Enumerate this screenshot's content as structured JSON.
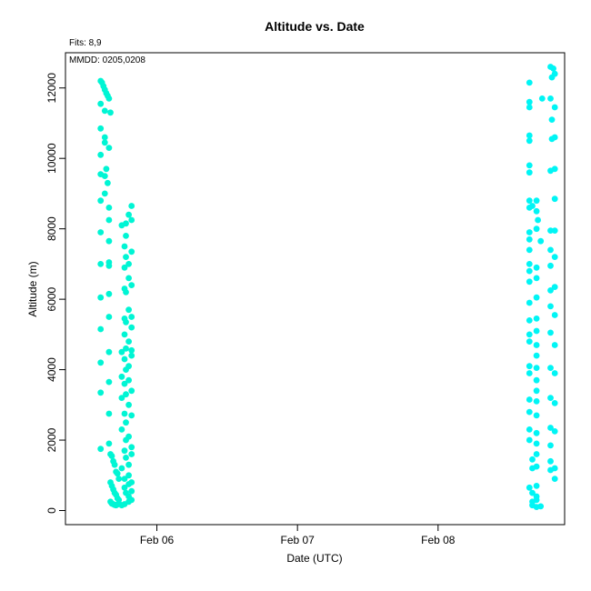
{
  "chart_data": {
    "type": "scatter",
    "title": "Altitude  vs. Date",
    "xlabel": "Date (UTC)",
    "ylabel": "Altitude (m)",
    "annotations": [
      "Fits: 8,9",
      "MMDD: 0205,0208"
    ],
    "xlim": [
      "2021-02-05T08:24",
      "2021-02-08T21:36"
    ],
    "ylim": [
      -400,
      13000
    ],
    "x_ticks": [
      {
        "value": "2021-02-06T00:00",
        "label": "Feb 06"
      },
      {
        "value": "2021-02-07T00:00",
        "label": "Feb 07"
      },
      {
        "value": "2021-02-08T00:00",
        "label": "Feb 08"
      }
    ],
    "y_ticks": [
      0,
      2000,
      4000,
      6000,
      8000,
      10000,
      12000
    ],
    "grid": false,
    "series": [
      {
        "color": "#00f5d4",
        "points": [
          [
            "2021-02-05T14:24",
            12200
          ],
          [
            "2021-02-05T14:38",
            12150
          ],
          [
            "2021-02-05T14:53",
            12050
          ],
          [
            "2021-02-05T15:07",
            11950
          ],
          [
            "2021-02-05T15:22",
            11850
          ],
          [
            "2021-02-05T15:36",
            11780
          ],
          [
            "2021-02-05T15:50",
            11700
          ],
          [
            "2021-02-05T16:05",
            11300
          ],
          [
            "2021-02-05T14:24",
            11550
          ],
          [
            "2021-02-05T15:07",
            11350
          ],
          [
            "2021-02-05T14:24",
            10850
          ],
          [
            "2021-02-05T15:07",
            10600
          ],
          [
            "2021-02-05T15:07",
            10450
          ],
          [
            "2021-02-05T15:50",
            10300
          ],
          [
            "2021-02-05T14:24",
            10100
          ],
          [
            "2021-02-05T15:22",
            9700
          ],
          [
            "2021-02-05T14:24",
            9550
          ],
          [
            "2021-02-05T15:07",
            9500
          ],
          [
            "2021-02-05T15:36",
            9300
          ],
          [
            "2021-02-05T15:07",
            9000
          ],
          [
            "2021-02-05T14:24",
            8800
          ],
          [
            "2021-02-05T15:50",
            8600
          ],
          [
            "2021-02-05T15:50",
            8250
          ],
          [
            "2021-02-05T14:24",
            7900
          ],
          [
            "2021-02-05T15:50",
            7650
          ],
          [
            "2021-02-05T15:50",
            7050
          ],
          [
            "2021-02-05T14:24",
            7000
          ],
          [
            "2021-02-05T15:50",
            6950
          ],
          [
            "2021-02-05T15:50",
            6150
          ],
          [
            "2021-02-05T14:24",
            6050
          ],
          [
            "2021-02-05T15:50",
            5500
          ],
          [
            "2021-02-05T14:24",
            5150
          ],
          [
            "2021-02-05T15:50",
            4500
          ],
          [
            "2021-02-05T14:24",
            4200
          ],
          [
            "2021-02-05T15:50",
            3650
          ],
          [
            "2021-02-05T14:24",
            3350
          ],
          [
            "2021-02-05T15:50",
            2750
          ],
          [
            "2021-02-05T14:24",
            1750
          ],
          [
            "2021-02-05T15:50",
            1900
          ],
          [
            "2021-02-05T16:05",
            1600
          ],
          [
            "2021-02-05T16:19",
            1550
          ],
          [
            "2021-02-05T16:34",
            1400
          ],
          [
            "2021-02-05T16:48",
            1300
          ],
          [
            "2021-02-05T17:02",
            1100
          ],
          [
            "2021-02-05T17:17",
            1050
          ],
          [
            "2021-02-05T17:31",
            900
          ],
          [
            "2021-02-05T16:05",
            800
          ],
          [
            "2021-02-05T16:19",
            700
          ],
          [
            "2021-02-05T16:34",
            600
          ],
          [
            "2021-02-05T16:48",
            500
          ],
          [
            "2021-02-05T17:02",
            450
          ],
          [
            "2021-02-05T17:17",
            350
          ],
          [
            "2021-02-05T17:31",
            300
          ],
          [
            "2021-02-05T16:05",
            250
          ],
          [
            "2021-02-05T16:19",
            200
          ],
          [
            "2021-02-05T16:34",
            180
          ],
          [
            "2021-02-05T16:48",
            160
          ],
          [
            "2021-02-05T17:02",
            150
          ],
          [
            "2021-02-05T17:17",
            170
          ],
          [
            "2021-02-05T17:31",
            200
          ],
          [
            "2021-02-05T18:00",
            150
          ],
          [
            "2021-02-05T18:29",
            180
          ],
          [
            "2021-02-05T19:12",
            250
          ],
          [
            "2021-02-05T19:41",
            300
          ],
          [
            "2021-02-05T19:12",
            400
          ],
          [
            "2021-02-05T18:43",
            500
          ],
          [
            "2021-02-05T19:41",
            550
          ],
          [
            "2021-02-05T18:29",
            650
          ],
          [
            "2021-02-05T19:12",
            750
          ],
          [
            "2021-02-05T19:41",
            800
          ],
          [
            "2021-02-05T18:29",
            900
          ],
          [
            "2021-02-05T19:12",
            1000
          ],
          [
            "2021-02-05T18:00",
            1200
          ],
          [
            "2021-02-05T19:12",
            1300
          ],
          [
            "2021-02-05T18:43",
            1500
          ],
          [
            "2021-02-05T19:41",
            1600
          ],
          [
            "2021-02-05T18:29",
            1700
          ],
          [
            "2021-02-05T19:41",
            1800
          ],
          [
            "2021-02-05T18:43",
            2000
          ],
          [
            "2021-02-05T19:12",
            2100
          ],
          [
            "2021-02-05T18:00",
            2300
          ],
          [
            "2021-02-05T18:43",
            2500
          ],
          [
            "2021-02-05T19:41",
            2700
          ],
          [
            "2021-02-05T18:29",
            2750
          ],
          [
            "2021-02-05T19:12",
            3000
          ],
          [
            "2021-02-05T18:00",
            3200
          ],
          [
            "2021-02-05T18:43",
            3300
          ],
          [
            "2021-02-05T19:41",
            3400
          ],
          [
            "2021-02-05T18:29",
            3600
          ],
          [
            "2021-02-05T19:12",
            3700
          ],
          [
            "2021-02-05T18:00",
            3800
          ],
          [
            "2021-02-05T18:43",
            4000
          ],
          [
            "2021-02-05T19:12",
            4100
          ],
          [
            "2021-02-05T18:29",
            4300
          ],
          [
            "2021-02-05T19:41",
            4400
          ],
          [
            "2021-02-05T18:00",
            4500
          ],
          [
            "2021-02-05T18:43",
            4600
          ],
          [
            "2021-02-05T19:41",
            4550
          ],
          [
            "2021-02-05T19:12",
            4800
          ],
          [
            "2021-02-05T18:29",
            5000
          ],
          [
            "2021-02-05T19:41",
            5200
          ],
          [
            "2021-02-05T18:43",
            5350
          ],
          [
            "2021-02-05T18:29",
            5450
          ],
          [
            "2021-02-05T19:41",
            5500
          ],
          [
            "2021-02-05T19:12",
            5700
          ],
          [
            "2021-02-05T18:43",
            6200
          ],
          [
            "2021-02-05T18:29",
            6300
          ],
          [
            "2021-02-05T19:41",
            6400
          ],
          [
            "2021-02-05T19:12",
            6600
          ],
          [
            "2021-02-05T18:29",
            6900
          ],
          [
            "2021-02-05T19:12",
            7000
          ],
          [
            "2021-02-05T18:43",
            7200
          ],
          [
            "2021-02-05T19:41",
            7350
          ],
          [
            "2021-02-05T18:29",
            7500
          ],
          [
            "2021-02-05T18:43",
            7800
          ],
          [
            "2021-02-05T18:00",
            8100
          ],
          [
            "2021-02-05T18:43",
            8150
          ],
          [
            "2021-02-05T19:41",
            8250
          ],
          [
            "2021-02-05T19:12",
            8400
          ],
          [
            "2021-02-05T19:41",
            8650
          ]
        ]
      },
      {
        "color": "#00f5f5",
        "points": [
          [
            "2021-02-08T19:12",
            12600
          ],
          [
            "2021-02-08T19:41",
            12550
          ],
          [
            "2021-02-08T19:26",
            12300
          ],
          [
            "2021-02-08T19:55",
            12400
          ],
          [
            "2021-02-08T15:36",
            12150
          ],
          [
            "2021-02-08T15:36",
            11600
          ],
          [
            "2021-02-08T15:36",
            11450
          ],
          [
            "2021-02-08T17:46",
            11700
          ],
          [
            "2021-02-08T19:12",
            11700
          ],
          [
            "2021-02-08T19:55",
            11450
          ],
          [
            "2021-02-08T19:26",
            11100
          ],
          [
            "2021-02-08T15:36",
            10650
          ],
          [
            "2021-02-08T15:36",
            10500
          ],
          [
            "2021-02-08T19:26",
            10550
          ],
          [
            "2021-02-08T19:55",
            10600
          ],
          [
            "2021-02-08T15:36",
            9800
          ],
          [
            "2021-02-08T15:36",
            9600
          ],
          [
            "2021-02-08T19:12",
            9650
          ],
          [
            "2021-02-08T19:55",
            9700
          ],
          [
            "2021-02-08T15:36",
            8800
          ],
          [
            "2021-02-08T16:48",
            8800
          ],
          [
            "2021-02-08T19:55",
            8850
          ],
          [
            "2021-02-08T15:36",
            8600
          ],
          [
            "2021-02-08T16:05",
            8650
          ],
          [
            "2021-02-08T16:48",
            8500
          ],
          [
            "2021-02-08T17:02",
            8250
          ],
          [
            "2021-02-08T15:36",
            7900
          ],
          [
            "2021-02-08T16:48",
            8000
          ],
          [
            "2021-02-08T19:12",
            7950
          ],
          [
            "2021-02-08T19:55",
            7950
          ],
          [
            "2021-02-08T15:36",
            7700
          ],
          [
            "2021-02-08T17:31",
            7650
          ],
          [
            "2021-02-08T15:36",
            7400
          ],
          [
            "2021-02-08T19:12",
            7400
          ],
          [
            "2021-02-08T19:55",
            7200
          ],
          [
            "2021-02-08T15:36",
            7000
          ],
          [
            "2021-02-08T15:36",
            6800
          ],
          [
            "2021-02-08T16:48",
            6900
          ],
          [
            "2021-02-08T19:12",
            6950
          ],
          [
            "2021-02-08T15:36",
            6500
          ],
          [
            "2021-02-08T16:48",
            6600
          ],
          [
            "2021-02-08T19:12",
            6250
          ],
          [
            "2021-02-08T19:55",
            6350
          ],
          [
            "2021-02-08T15:36",
            5900
          ],
          [
            "2021-02-08T16:48",
            6050
          ],
          [
            "2021-02-08T19:12",
            5800
          ],
          [
            "2021-02-08T19:55",
            5550
          ],
          [
            "2021-02-08T15:36",
            5400
          ],
          [
            "2021-02-08T16:48",
            5450
          ],
          [
            "2021-02-08T15:36",
            5000
          ],
          [
            "2021-02-08T16:48",
            5100
          ],
          [
            "2021-02-08T19:12",
            5050
          ],
          [
            "2021-02-08T19:55",
            4700
          ],
          [
            "2021-02-08T15:36",
            4800
          ],
          [
            "2021-02-08T16:48",
            4700
          ],
          [
            "2021-02-08T16:48",
            4400
          ],
          [
            "2021-02-08T15:36",
            4100
          ],
          [
            "2021-02-08T16:48",
            4050
          ],
          [
            "2021-02-08T19:12",
            4050
          ],
          [
            "2021-02-08T15:36",
            3900
          ],
          [
            "2021-02-08T16:48",
            3700
          ],
          [
            "2021-02-08T19:55",
            3900
          ],
          [
            "2021-02-08T16:48",
            3400
          ],
          [
            "2021-02-08T15:36",
            3150
          ],
          [
            "2021-02-08T16:48",
            3100
          ],
          [
            "2021-02-08T19:12",
            3200
          ],
          [
            "2021-02-08T19:55",
            3050
          ],
          [
            "2021-02-08T15:36",
            2800
          ],
          [
            "2021-02-08T16:48",
            2700
          ],
          [
            "2021-02-08T15:36",
            2300
          ],
          [
            "2021-02-08T16:48",
            2200
          ],
          [
            "2021-02-08T19:12",
            2350
          ],
          [
            "2021-02-08T19:55",
            2250
          ],
          [
            "2021-02-08T15:36",
            2000
          ],
          [
            "2021-02-08T16:48",
            1900
          ],
          [
            "2021-02-08T19:12",
            1850
          ],
          [
            "2021-02-08T16:48",
            1600
          ],
          [
            "2021-02-08T16:05",
            1450
          ],
          [
            "2021-02-08T19:12",
            1400
          ],
          [
            "2021-02-08T19:55",
            1200
          ],
          [
            "2021-02-08T16:05",
            1200
          ],
          [
            "2021-02-08T16:48",
            1250
          ],
          [
            "2021-02-08T19:12",
            1150
          ],
          [
            "2021-02-08T19:55",
            900
          ],
          [
            "2021-02-08T16:48",
            700
          ],
          [
            "2021-02-08T15:36",
            650
          ],
          [
            "2021-02-08T16:05",
            500
          ],
          [
            "2021-02-08T16:48",
            400
          ],
          [
            "2021-02-08T16:05",
            250
          ],
          [
            "2021-02-08T16:48",
            300
          ],
          [
            "2021-02-08T16:05",
            150
          ],
          [
            "2021-02-08T16:48",
            100
          ],
          [
            "2021-02-08T17:31",
            120
          ]
        ]
      }
    ]
  }
}
